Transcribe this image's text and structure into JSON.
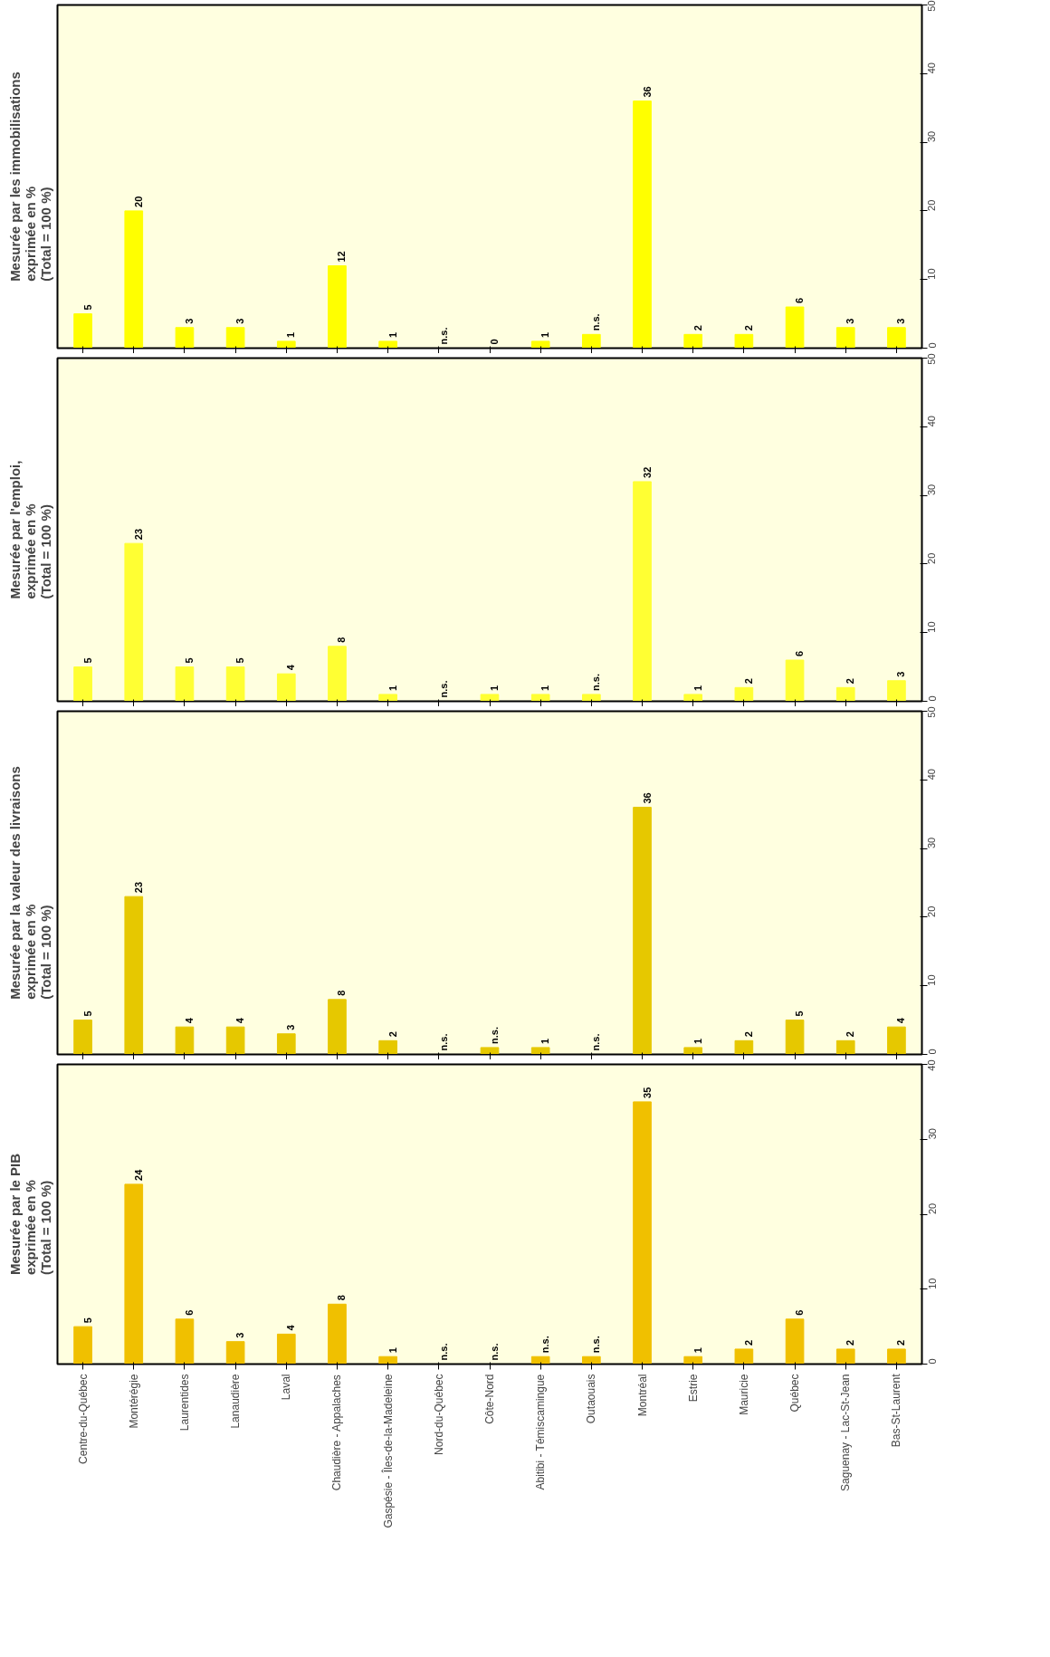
{
  "chart_data": [
    {
      "type": "bar",
      "title": "Mesurée par les immobilisations\nexprimée en  %\n(Total = 100  %)",
      "categories": [
        null,
        null,
        null,
        null,
        null,
        null,
        null,
        null,
        null,
        null,
        null,
        null,
        null,
        null,
        null,
        null,
        null
      ],
      "values": [
        5,
        20,
        3,
        3,
        1,
        12,
        1,
        null,
        0,
        1,
        2,
        36,
        2,
        2,
        6,
        3,
        3
      ],
      "value_labels": [
        "5",
        "20",
        "3",
        "3",
        "1",
        "12",
        "1",
        "n.s.",
        "0",
        "1",
        "n.s.",
        "36",
        "2",
        "2",
        "6",
        "3",
        "3"
      ],
      "color": "#ffff00",
      "ylim": [
        0,
        50
      ],
      "yticks": [
        0,
        10,
        20,
        30,
        40,
        50
      ],
      "tick_labels": "y"
    },
    {
      "type": "bar",
      "title": "Mesurée par l'emploi,\nexprimée en  %\n(Total = 100  %)",
      "categories": [
        null,
        null,
        null,
        null,
        null,
        null,
        null,
        null,
        null,
        null,
        null,
        null,
        null,
        null,
        null,
        null,
        null
      ],
      "values": [
        5,
        23,
        5,
        5,
        4,
        8,
        1,
        null,
        1,
        1,
        1,
        32,
        1,
        2,
        6,
        2,
        3
      ],
      "value_labels": [
        "5",
        "23",
        "5",
        "5",
        "4",
        "8",
        "1",
        "n.s.",
        "1",
        "1",
        "n.s.",
        "32",
        "1",
        "2",
        "6",
        "2",
        "3"
      ],
      "color": "#ffff33",
      "ylim": [
        0,
        50
      ],
      "yticks": [
        0,
        10,
        20,
        30,
        40,
        50
      ],
      "tick_labels": "y"
    },
    {
      "type": "bar",
      "title": "Mesurée par la valeur des livraisons\nexprimée en  %\n(Total = 100  %)",
      "categories": [
        null,
        null,
        null,
        null,
        null,
        null,
        null,
        null,
        null,
        null,
        null,
        null,
        null,
        null,
        null,
        null,
        null
      ],
      "values": [
        5,
        23,
        4,
        4,
        3,
        8,
        2,
        null,
        1,
        1,
        null,
        36,
        1,
        2,
        5,
        2,
        4
      ],
      "value_labels": [
        "5",
        "23",
        "4",
        "4",
        "3",
        "8",
        "2",
        "n.s.",
        "n.s.",
        "1",
        "n.s.",
        "36",
        "1",
        "2",
        "5",
        "2",
        "4"
      ],
      "color": "#e6c800",
      "ylim": [
        0,
        50
      ],
      "yticks": [
        0,
        10,
        20,
        30,
        40,
        50
      ],
      "tick_labels": "y"
    },
    {
      "type": "bar",
      "title": "Mesurée par le PIB\nexprimée en  %\n(Total = 100  %)",
      "categories": [
        "Centre-du-Québec",
        "Montérégie",
        "Laurentides",
        "Lanaudière",
        "Laval",
        "Chaudière - Appalaches",
        "Gaspésie - Îles-de-la-Madeleine",
        "Nord-du-Québec",
        "Côte-Nord",
        "Abitibi - Témiscamingue",
        "Outaouais",
        "Montréal",
        "Estrie",
        "Mauricie",
        "Québec",
        "Saguenay - Lac-St-Jean",
        "Bas-St-Laurent"
      ],
      "values": [
        5,
        24,
        6,
        3,
        4,
        8,
        1,
        null,
        null,
        1,
        1,
        35,
        1,
        2,
        6,
        2,
        2
      ],
      "value_labels": [
        "5",
        "24",
        "6",
        "3",
        "4",
        "8",
        "1",
        "n.s.",
        "n.s.",
        "n.s.",
        "n.s.",
        "35",
        "1",
        "2",
        "6",
        "2",
        "2"
      ],
      "color": "#f0c000",
      "ylim": [
        0,
        40
      ],
      "yticks": [
        0,
        10,
        20,
        30,
        40
      ]
    }
  ]
}
